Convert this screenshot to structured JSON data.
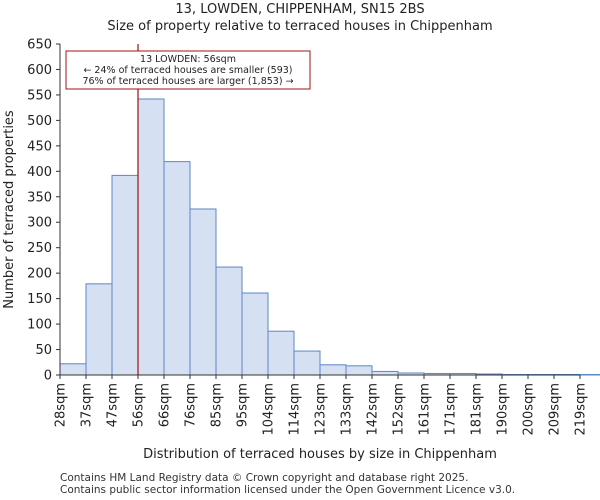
{
  "chart_data": {
    "type": "bar",
    "title": "13, LOWDEN, CHIPPENHAM, SN15 2BS",
    "subtitle": "Size of property relative to terraced houses in Chippenham",
    "xlabel": "Distribution of terraced houses by size in Chippenham",
    "ylabel": "Number of terraced properties",
    "categories": [
      "28sqm",
      "37sqm",
      "47sqm",
      "56sqm",
      "66sqm",
      "76sqm",
      "85sqm",
      "95sqm",
      "104sqm",
      "114sqm",
      "123sqm",
      "133sqm",
      "142sqm",
      "152sqm",
      "161sqm",
      "171sqm",
      "181sqm",
      "190sqm",
      "200sqm",
      "209sqm",
      "219sqm"
    ],
    "values": [
      22,
      179,
      392,
      542,
      419,
      326,
      212,
      161,
      86,
      47,
      20,
      18,
      7,
      4,
      3,
      3,
      2,
      1,
      1,
      1,
      1
    ],
    "ylim": [
      0,
      650
    ],
    "yticks": [
      0,
      50,
      100,
      150,
      200,
      250,
      300,
      350,
      400,
      450,
      500,
      550,
      600,
      650
    ],
    "bar_color": "#d6e0f3",
    "bar_edge": "#5b87c6",
    "marker": {
      "value_index": 3,
      "color": "#a01010",
      "label_lines": [
        "13 LOWDEN: 56sqm",
        "← 24% of terraced houses are smaller (593)",
        "76% of terraced houses are larger (1,853) →"
      ]
    }
  },
  "footer": {
    "line1": "Contains HM Land Registry data © Crown copyright and database right 2025.",
    "line2": "Contains public sector information licensed under the Open Government Licence v3.0."
  }
}
